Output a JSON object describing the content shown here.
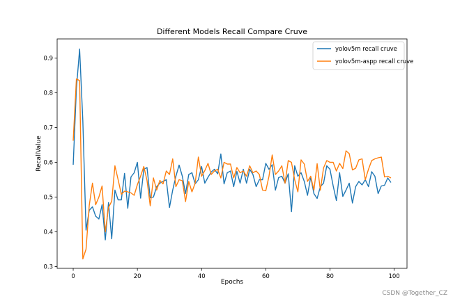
{
  "chart_data": {
    "type": "line",
    "title": "Different Models Recall Compare Cruve",
    "xlabel": "Epochs",
    "ylabel": "RecallValue",
    "xlim": [
      -5,
      104
    ],
    "ylim": [
      0.295,
      0.955
    ],
    "xticks": [
      0,
      20,
      40,
      60,
      80,
      100
    ],
    "yticks": [
      0.3,
      0.4,
      0.5,
      0.6,
      0.7,
      0.8,
      0.9
    ],
    "grid": false,
    "legend_position": "top-right",
    "series": [
      {
        "name": "yolov5m recall cruve",
        "color": "#1f77b4",
        "values": [
          0.593,
          0.812,
          0.926,
          0.72,
          0.405,
          0.462,
          0.472,
          0.445,
          0.437,
          0.478,
          0.377,
          0.484,
          0.38,
          0.52,
          0.492,
          0.492,
          0.568,
          0.468,
          0.558,
          0.57,
          0.6,
          0.497,
          0.58,
          0.585,
          0.498,
          0.5,
          0.53,
          0.54,
          0.545,
          0.55,
          0.47,
          0.52,
          0.56,
          0.592,
          0.56,
          0.51,
          0.565,
          0.57,
          0.538,
          0.55,
          0.588,
          0.54,
          0.557,
          0.572,
          0.58,
          0.567,
          0.624,
          0.538,
          0.57,
          0.575,
          0.53,
          0.574,
          0.54,
          0.58,
          0.54,
          0.58,
          0.565,
          0.53,
          0.55,
          0.55,
          0.597,
          0.58,
          0.593,
          0.52,
          0.556,
          0.56,
          0.54,
          0.567,
          0.458,
          0.59,
          0.56,
          0.57,
          0.545,
          0.505,
          0.558,
          0.51,
          0.496,
          0.53,
          0.54,
          0.59,
          0.58,
          0.532,
          0.49,
          0.57,
          0.502,
          0.52,
          0.54,
          0.483,
          0.53,
          0.545,
          0.535,
          0.55,
          0.53,
          0.573,
          0.56,
          0.51,
          0.532,
          0.534,
          0.555,
          0.542
        ]
      },
      {
        "name": "yolov5m-aspp recall cruve",
        "color": "#ff7f0e",
        "values": [
          0.662,
          0.84,
          0.835,
          0.322,
          0.35,
          0.476,
          0.54,
          0.478,
          0.5,
          0.532,
          0.4,
          0.47,
          0.488,
          0.59,
          0.55,
          0.508,
          0.517,
          0.515,
          0.512,
          0.505,
          0.536,
          0.56,
          0.588,
          0.548,
          0.475,
          0.555,
          0.52,
          0.548,
          0.538,
          0.575,
          0.565,
          0.61,
          0.53,
          0.55,
          0.547,
          0.487,
          0.545,
          0.515,
          0.54,
          0.615,
          0.56,
          0.576,
          0.597,
          0.565,
          0.575,
          0.58,
          0.555,
          0.6,
          0.595,
          0.595,
          0.555,
          0.585,
          0.57,
          0.575,
          0.56,
          0.59,
          0.57,
          0.575,
          0.565,
          0.52,
          0.518,
          0.56,
          0.621,
          0.565,
          0.575,
          0.59,
          0.54,
          0.605,
          0.6,
          0.55,
          0.515,
          0.607,
          0.595,
          0.545,
          0.56,
          0.52,
          0.596,
          0.52,
          0.584,
          0.605,
          0.6,
          0.6,
          0.575,
          0.597,
          0.582,
          0.633,
          0.625,
          0.578,
          0.583,
          0.607,
          0.61,
          0.55,
          0.58,
          0.605,
          0.61,
          0.613,
          0.615,
          0.558,
          0.56,
          0.555
        ]
      }
    ]
  },
  "watermark": "CSDN @Together_CZ"
}
